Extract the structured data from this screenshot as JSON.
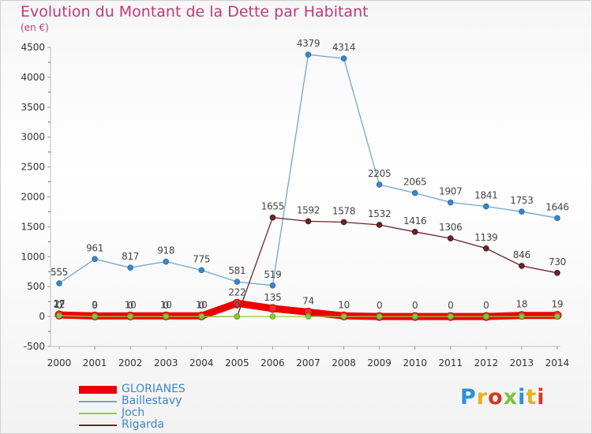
{
  "title": "Evolution du Montant de la Dette par Habitant",
  "unit": "(en €)",
  "logo_text": "Proxiti",
  "logo_colors": [
    "#2d8fd6",
    "#e8b21c",
    "#d4391f",
    "#7bc142",
    "#2d8fd6",
    "#e8b21c",
    "#d4391f"
  ],
  "chart_data": {
    "type": "line",
    "title": "Evolution du Montant de la Dette par Habitant",
    "ylabel": "(en €)",
    "x": [
      "2000",
      "2001",
      "2002",
      "2003",
      "2004",
      "2005",
      "2006",
      "2007",
      "2008",
      "2009",
      "2010",
      "2011",
      "2012",
      "2013",
      "2014"
    ],
    "ylim": [
      -500,
      4500
    ],
    "yticks": [
      -500,
      0,
      500,
      1000,
      1500,
      2000,
      2500,
      3000,
      3500,
      4000,
      4500
    ],
    "grid": false,
    "legend_position": "bottom-left",
    "series": [
      {
        "name": "GLORIANES",
        "color": "#ee0000",
        "values": [
          27,
          9,
          10,
          10,
          10,
          222,
          135,
          74,
          10,
          0,
          0,
          0,
          0,
          18,
          19
        ],
        "labels": [
          "27",
          "9",
          "10",
          "10",
          "10",
          "222",
          "135",
          "74",
          "10",
          "0",
          "0",
          "0",
          "0",
          "18",
          "19"
        ]
      },
      {
        "name": "Baillestavy",
        "color": "#6fa7d4",
        "values": [
          555,
          961,
          817,
          918,
          775,
          581,
          519,
          4379,
          4314,
          2205,
          2065,
          1907,
          1841,
          1753,
          1646
        ],
        "labels": [
          "555",
          "961",
          "817",
          "918",
          "775",
          "581",
          "519",
          "4379",
          "4314",
          "2205",
          "2065",
          "1907",
          "1841",
          "1753",
          "1646"
        ]
      },
      {
        "name": "Joch",
        "color": "#99cc44",
        "values": [
          12,
          0,
          0,
          0,
          0,
          0,
          0,
          0,
          0,
          0,
          0,
          0,
          0,
          0,
          0
        ],
        "labels": [
          "12",
          "",
          "",
          "",
          "",
          "",
          "",
          "",
          "",
          "",
          "",
          "",
          "",
          "",
          ""
        ]
      },
      {
        "name": "Rigarda",
        "color": "#6b2426",
        "values": [
          0,
          0,
          0,
          0,
          0,
          0,
          1655,
          1592,
          1578,
          1532,
          1416,
          1306,
          1139,
          846,
          730
        ],
        "labels": [
          "0",
          "0",
          "0",
          "0",
          "0",
          "0",
          "1655",
          "1592",
          "1578",
          "1532",
          "1416",
          "1306",
          "1139",
          "846",
          "730"
        ]
      }
    ]
  }
}
